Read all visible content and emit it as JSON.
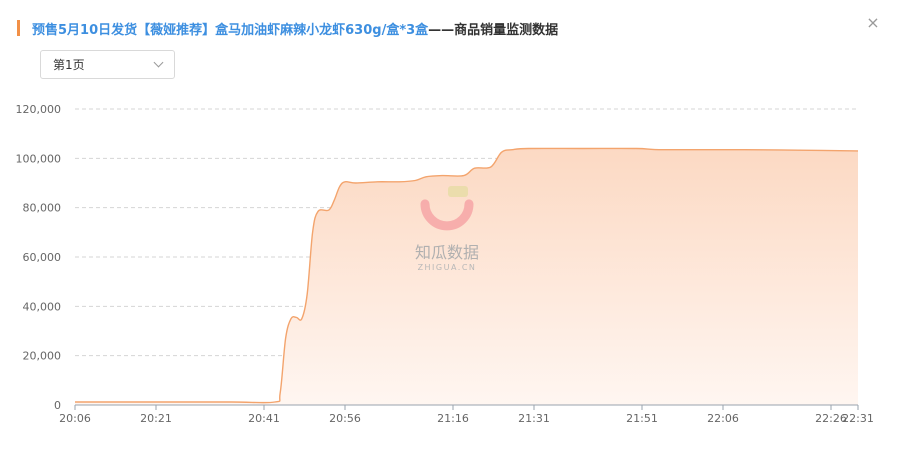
{
  "header": {
    "title_product": "预售5月10日发货【薇娅推荐】盒马加油虾麻辣小龙虾630g/盒*3盒",
    "title_suffix": "——商品销量监测数据",
    "close_label": "×"
  },
  "pager": {
    "selected": "第1页"
  },
  "watermark": {
    "brand": "知瓜数据",
    "domain": "ZHIGUA.CN"
  },
  "colors": {
    "line": "#f3a46d",
    "area_top": "#fcd9c3",
    "area_bottom": "#fff6f1",
    "accent": "#f29047",
    "title_link": "#3d8fe0",
    "grid": "#d5d5d5"
  },
  "chart_data": {
    "type": "area",
    "title": "",
    "xlabel": "",
    "ylabel": "",
    "x_tick_labels": [
      "20:06",
      "20:21",
      "20:41",
      "20:56",
      "21:16",
      "21:31",
      "21:51",
      "22:06",
      "22:26",
      "22:31"
    ],
    "y_tick_labels": [
      "0",
      "20,000",
      "40,000",
      "60,000",
      "80,000",
      "100,000",
      "120,000"
    ],
    "ylim": [
      0,
      120000
    ],
    "xlim": [
      "20:06",
      "22:31"
    ],
    "grid": "horizontal dashed",
    "legend": "none",
    "series": [
      {
        "points": [
          [
            "20:06",
            1200
          ],
          [
            "20:20",
            1200
          ],
          [
            "20:35",
            1200
          ],
          [
            "20:43",
            1200
          ],
          [
            "20:44",
            5000
          ],
          [
            "20:45",
            27000
          ],
          [
            "20:46",
            35000
          ],
          [
            "20:47",
            35500
          ],
          [
            "20:48",
            35000
          ],
          [
            "20:49",
            45000
          ],
          [
            "20:50",
            70000
          ],
          [
            "20:51",
            78500
          ],
          [
            "20:53",
            79000
          ],
          [
            "20:54",
            83000
          ],
          [
            "20:55",
            88500
          ],
          [
            "20:56",
            90500
          ],
          [
            "20:58",
            90000
          ],
          [
            "21:02",
            90500
          ],
          [
            "21:06",
            90500
          ],
          [
            "21:09",
            91000
          ],
          [
            "21:11",
            92500
          ],
          [
            "21:14",
            93000
          ],
          [
            "21:18",
            93000
          ],
          [
            "21:20",
            96000
          ],
          [
            "21:23",
            96500
          ],
          [
            "21:25",
            102500
          ],
          [
            "21:27",
            103500
          ],
          [
            "21:30",
            104000
          ],
          [
            "21:40",
            104000
          ],
          [
            "21:50",
            104000
          ],
          [
            "21:55",
            103500
          ],
          [
            "22:10",
            103500
          ],
          [
            "22:20",
            103300
          ],
          [
            "22:31",
            103000
          ]
        ]
      }
    ]
  }
}
